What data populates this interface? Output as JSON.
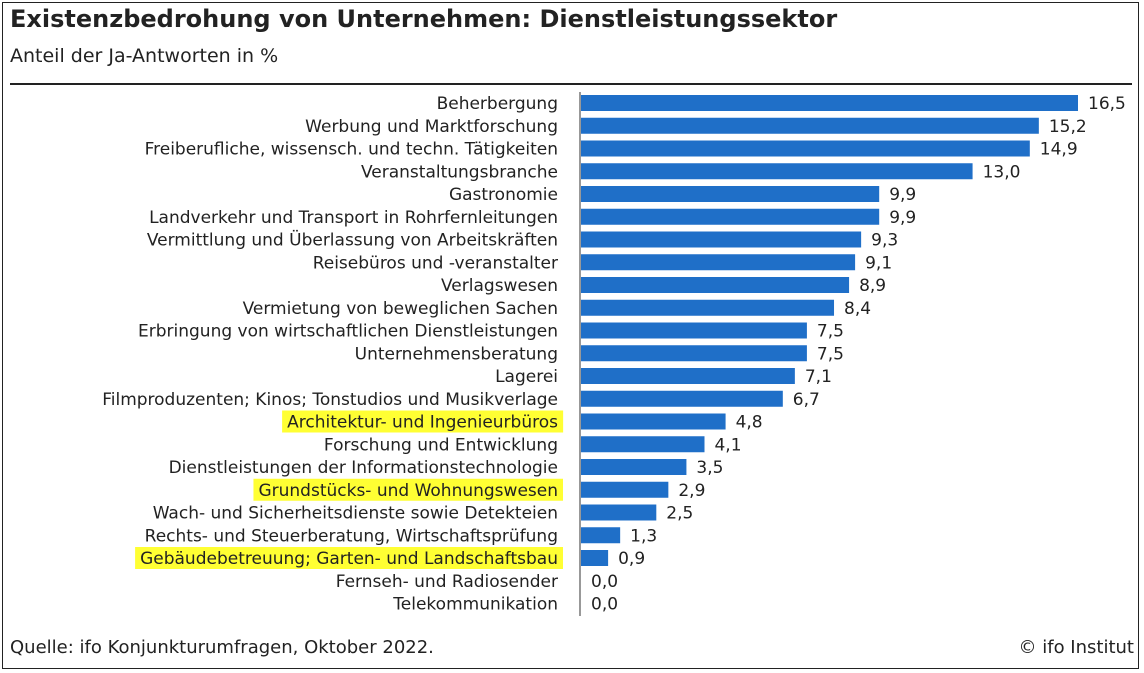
{
  "header": {
    "title": "Existenzbedrohung von Unternehmen: Dienstleistungssektor",
    "subtitle": "Anteil der Ja-Antworten in %"
  },
  "footer": {
    "source": "Quelle: ifo Konjunkturumfragen, Oktober 2022.",
    "copyright": "© ifo Institut"
  },
  "colors": {
    "bar": "#1f6fc8",
    "highlight": "#ffff33",
    "text": "#222222"
  },
  "chart_data": {
    "type": "bar",
    "orientation": "horizontal",
    "title": "Existenzbedrohung von Unternehmen: Dienstleistungssektor",
    "subtitle": "Anteil der Ja-Antworten in %",
    "xlim": [
      0,
      16.5
    ],
    "grid": false,
    "categories": [
      "Beherbergung",
      "Werbung und Marktforschung",
      "Freiberufliche, wissensch. und techn. Tätigkeiten",
      "Veranstaltungsbranche",
      "Gastronomie",
      "Landverkehr und Transport in Rohrfernleitungen",
      "Vermittlung und Überlassung von Arbeitskräften",
      "Reisebüros und -veranstalter",
      "Verlagswesen",
      "Vermietung von beweglichen Sachen",
      "Erbringung von wirtschaftlichen Dienstleistungen",
      "Unternehmensberatung",
      "Lagerei",
      "Filmproduzenten; Kinos; Tonstudios und Musikverlage",
      "Architektur- und Ingenieurbüros",
      "Forschung und Entwicklung",
      "Dienstleistungen der Informationstechnologie",
      "Grundstücks- und Wohnungswesen",
      "Wach- und Sicherheitsdienste sowie Detekteien",
      "Rechts- und Steuerberatung, Wirtschaftsprüfung",
      "Gebäudebetreuung; Garten- und Landschaftsbau",
      "Fernseh- und Radiosender",
      "Telekommunikation"
    ],
    "values": [
      16.5,
      15.2,
      14.9,
      13.0,
      9.9,
      9.9,
      9.3,
      9.1,
      8.9,
      8.4,
      7.5,
      7.5,
      7.1,
      6.7,
      4.8,
      4.1,
      3.5,
      2.9,
      2.5,
      1.3,
      0.9,
      0.0,
      0.0
    ],
    "value_labels": [
      "16,5",
      "15,2",
      "14,9",
      "13,0",
      "9,9",
      "9,9",
      "9,3",
      "9,1",
      "8,9",
      "8,4",
      "7,5",
      "7,5",
      "7,1",
      "6,7",
      "4,8",
      "4,1",
      "3,5",
      "2,9",
      "2,5",
      "1,3",
      "0,9",
      "0,0",
      "0,0"
    ],
    "highlighted": [
      "Architektur- und Ingenieurbüros",
      "Grundstücks- und Wohnungswesen",
      "Gebäudebetreuung; Garten- und Landschaftsbau"
    ]
  }
}
